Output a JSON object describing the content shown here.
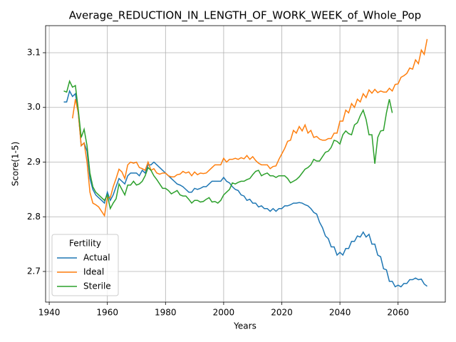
{
  "chart_data": {
    "type": "line",
    "title": "Average_REDUCTION_IN_LENGTH_OF_WORK_WEEK_of_Whole_Pop",
    "x_label": "Years",
    "y_label": "Score(1-5)",
    "legend_title": "Fertility",
    "legend_position": "lower left",
    "grid": true,
    "xlim": [
      1938.75,
      2076.25
    ],
    "ylim": [
      2.644,
      3.1495
    ],
    "xticks": [
      1940,
      1960,
      1980,
      2000,
      2020,
      2040,
      2060
    ],
    "yticks": [
      2.7,
      2.8,
      2.9,
      {
        "value": 3,
        "label": "3.0"
      },
      3.1
    ],
    "x": [
      1945,
      1946,
      1947,
      1948,
      1949,
      1950,
      1951,
      1952,
      1953,
      1954,
      1955,
      1956,
      1957,
      1958,
      1959,
      1960,
      1961,
      1962,
      1963,
      1964,
      1965,
      1966,
      1967,
      1968,
      1969,
      1970,
      1971,
      1972,
      1973,
      1974,
      1975,
      1976,
      1977,
      1978,
      1979,
      1980,
      1981,
      1982,
      1983,
      1984,
      1985,
      1986,
      1987,
      1988,
      1989,
      1990,
      1991,
      1992,
      1993,
      1994,
      1995,
      1996,
      1997,
      1998,
      1999,
      2000,
      2001,
      2002,
      2003,
      2004,
      2005,
      2006,
      2007,
      2008,
      2009,
      2010,
      2011,
      2012,
      2013,
      2014,
      2015,
      2016,
      2017,
      2018,
      2019,
      2020,
      2021,
      2022,
      2023,
      2024,
      2025,
      2026,
      2027,
      2028,
      2029,
      2030,
      2031,
      2032,
      2033,
      2034,
      2035,
      2036,
      2037,
      2038,
      2039,
      2040,
      2041,
      2042,
      2043,
      2044,
      2045,
      2046,
      2047,
      2048,
      2049,
      2050,
      2051,
      2052,
      2053,
      2054,
      2055,
      2056,
      2057,
      2058,
      2059,
      2060,
      2061,
      2062,
      2063,
      2064,
      2065,
      2066,
      2067,
      2068,
      2069,
      2070
    ],
    "series": [
      {
        "name": "Actual",
        "color": "#1f77b4",
        "values": [
          3.01,
          3.01,
          3.03,
          3.02,
          3.025,
          2.99,
          2.93,
          2.935,
          2.92,
          2.87,
          2.85,
          2.84,
          2.835,
          2.83,
          2.825,
          2.845,
          2.83,
          2.84,
          2.855,
          2.87,
          2.865,
          2.86,
          2.875,
          2.88,
          2.88,
          2.88,
          2.875,
          2.885,
          2.88,
          2.895,
          2.895,
          2.9,
          2.895,
          2.89,
          2.885,
          2.88,
          2.875,
          2.87,
          2.865,
          2.86,
          2.858,
          2.855,
          2.85,
          2.845,
          2.845,
          2.852,
          2.85,
          2.852,
          2.855,
          2.855,
          2.86,
          2.865,
          2.865,
          2.865,
          2.865,
          2.872,
          2.865,
          2.862,
          2.855,
          2.85,
          2.848,
          2.84,
          2.838,
          2.83,
          2.832,
          2.825,
          2.825,
          2.818,
          2.82,
          2.815,
          2.815,
          2.81,
          2.815,
          2.81,
          2.815,
          2.815,
          2.82,
          2.82,
          2.822,
          2.825,
          2.825,
          2.826,
          2.825,
          2.822,
          2.82,
          2.815,
          2.808,
          2.805,
          2.79,
          2.78,
          2.765,
          2.76,
          2.745,
          2.745,
          2.73,
          2.735,
          2.73,
          2.742,
          2.742,
          2.755,
          2.755,
          2.765,
          2.763,
          2.772,
          2.763,
          2.768,
          2.75,
          2.75,
          2.73,
          2.727,
          2.705,
          2.703,
          2.682,
          2.682,
          2.672,
          2.675,
          2.672,
          2.678,
          2.678,
          2.685,
          2.685,
          2.688,
          2.685,
          2.686,
          2.677,
          2.673
        ]
      },
      {
        "name": "Ideal",
        "color": "#ff7f0e",
        "values": [
          null,
          null,
          null,
          2.98,
          3.015,
          2.99,
          2.93,
          2.935,
          2.9,
          2.845,
          2.825,
          2.822,
          2.818,
          2.81,
          2.802,
          2.835,
          2.835,
          2.855,
          2.87,
          2.887,
          2.882,
          2.87,
          2.895,
          2.9,
          2.898,
          2.9,
          2.89,
          2.888,
          2.885,
          2.9,
          2.885,
          2.888,
          2.88,
          2.878,
          2.88,
          2.88,
          2.875,
          2.873,
          2.873,
          2.877,
          2.878,
          2.883,
          2.88,
          2.882,
          2.875,
          2.882,
          2.877,
          2.88,
          2.879,
          2.88,
          2.885,
          2.89,
          2.895,
          2.895,
          2.895,
          2.907,
          2.9,
          2.905,
          2.905,
          2.907,
          2.905,
          2.908,
          2.906,
          2.912,
          2.905,
          2.91,
          2.903,
          2.898,
          2.895,
          2.895,
          2.895,
          2.888,
          2.892,
          2.893,
          2.905,
          2.915,
          2.925,
          2.938,
          2.94,
          2.958,
          2.953,
          2.965,
          2.957,
          2.968,
          2.953,
          2.958,
          2.945,
          2.947,
          2.942,
          2.94,
          2.94,
          2.943,
          2.943,
          2.953,
          2.953,
          2.975,
          2.975,
          2.995,
          2.99,
          3.007,
          3.0,
          3.015,
          3.01,
          3.025,
          3.018,
          3.032,
          3.026,
          3.033,
          3.027,
          3.03,
          3.028,
          3.028,
          3.035,
          3.03,
          3.042,
          3.043,
          3.055,
          3.058,
          3.062,
          3.072,
          3.07,
          3.087,
          3.08,
          3.105,
          3.097,
          3.125
        ]
      },
      {
        "name": "Sterile",
        "color": "#2ca02c",
        "values": [
          3.03,
          3.028,
          3.048,
          3.037,
          3.04,
          2.995,
          2.945,
          2.96,
          2.93,
          2.88,
          2.855,
          2.845,
          2.84,
          2.835,
          2.83,
          2.84,
          2.815,
          2.825,
          2.833,
          2.86,
          2.85,
          2.84,
          2.858,
          2.858,
          2.865,
          2.858,
          2.86,
          2.865,
          2.875,
          2.89,
          2.885,
          2.875,
          2.868,
          2.86,
          2.852,
          2.852,
          2.848,
          2.842,
          2.845,
          2.848,
          2.84,
          2.838,
          2.838,
          2.832,
          2.825,
          2.83,
          2.83,
          2.827,
          2.828,
          2.832,
          2.835,
          2.827,
          2.828,
          2.825,
          2.83,
          2.84,
          2.845,
          2.85,
          2.862,
          2.86,
          2.863,
          2.865,
          2.865,
          2.868,
          2.87,
          2.877,
          2.883,
          2.885,
          2.875,
          2.878,
          2.88,
          2.875,
          2.875,
          2.872,
          2.875,
          2.875,
          2.875,
          2.87,
          2.862,
          2.865,
          2.868,
          2.873,
          2.88,
          2.887,
          2.89,
          2.895,
          2.905,
          2.902,
          2.902,
          2.91,
          2.918,
          2.92,
          2.927,
          2.94,
          2.938,
          2.933,
          2.95,
          2.957,
          2.952,
          2.95,
          2.968,
          2.972,
          2.985,
          2.995,
          2.978,
          2.95,
          2.95,
          2.897,
          2.945,
          2.957,
          2.958,
          2.99,
          3.015,
          2.99,
          null,
          null,
          null,
          null,
          null,
          null,
          null,
          null,
          null,
          null,
          null,
          null
        ]
      }
    ]
  }
}
